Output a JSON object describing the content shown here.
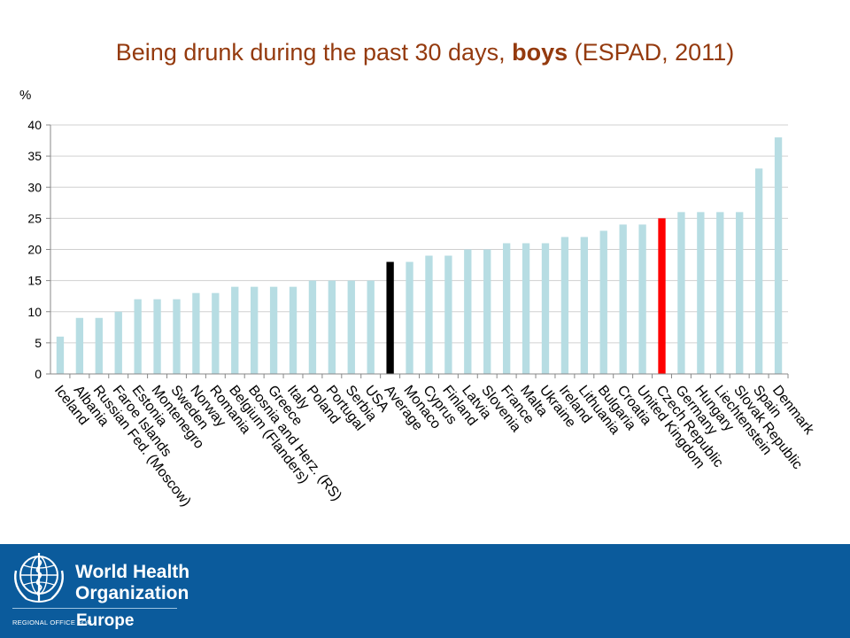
{
  "chart_data": {
    "type": "bar",
    "title_plain": "Being drunk during the past 30 days,",
    "title_bold": "boys",
    "title_tail": "(ESPAD, 2011)",
    "ylabel": "%",
    "ylim": [
      0,
      40
    ],
    "yticks": [
      0,
      5,
      10,
      15,
      20,
      25,
      30,
      35,
      40
    ],
    "categories": [
      "Iceland",
      "Albania",
      "Russian Fed. (Moscow)",
      "Faroe Islands",
      "Estonia",
      "Montenegro",
      "Sweden",
      "Norway",
      "Romania",
      "Belgium (Flanders)",
      "Bosnia and Herz. (RS)",
      "Greece",
      "Italy",
      "Poland",
      "Portugal",
      "Serbia",
      "USA",
      "Average",
      "Monaco",
      "Cyprus",
      "Finland",
      "Latvia",
      "Slovenia",
      "France",
      "Malta",
      "Ukraine",
      "Ireland",
      "Lithuania",
      "Bulgaria",
      "Croatia",
      "United Kingdom",
      "Czech Republic",
      "Germany",
      "Hungary",
      "Liechtenstein",
      "Slovak Republic",
      "Spain",
      "Denmark"
    ],
    "values": [
      6,
      9,
      9,
      10,
      12,
      12,
      12,
      13,
      13,
      14,
      14,
      14,
      14,
      15,
      15,
      15,
      15,
      18,
      18,
      19,
      19,
      20,
      20,
      21,
      21,
      21,
      22,
      22,
      23,
      24,
      24,
      25,
      26,
      26,
      26,
      26,
      33,
      38
    ],
    "colors": {
      "default": "#b7dde3",
      "Average": "#000000",
      "Czech Republic": "#ff0000"
    },
    "grid": true,
    "grid_color": "#d0d0d0"
  },
  "footer": {
    "org_line1": "World Health",
    "org_line2": "Organization",
    "regional": "REGIONAL OFFICE FOR",
    "region": "Europe",
    "background": "#0b5b9c"
  }
}
